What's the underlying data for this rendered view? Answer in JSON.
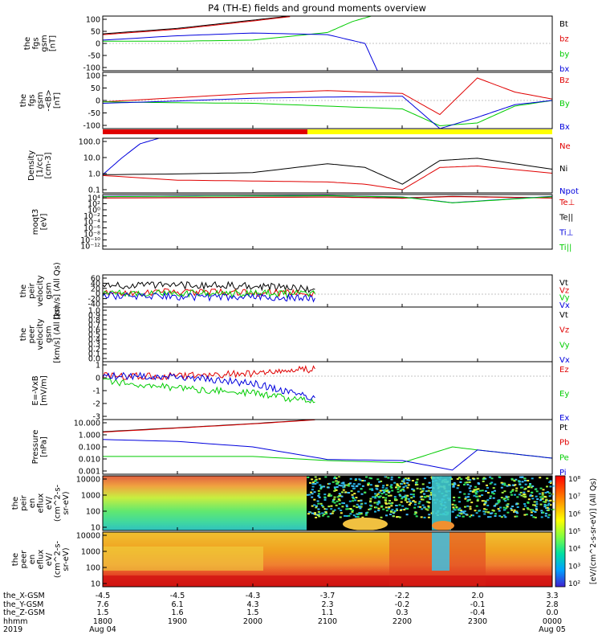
{
  "title": "P4 (TH-E) fields and ground moments overview",
  "colors": {
    "black": "#000000",
    "red": "#e00000",
    "green": "#00cc00",
    "blue": "#0000dd",
    "yellow": "#ffff00"
  },
  "panels": [
    {
      "id": "fgs",
      "ylabel": [
        "the",
        "fgs",
        "gsm",
        "[nT]"
      ],
      "ticks": [
        "100",
        "50",
        "0",
        "-50",
        "-100"
      ],
      "legend": [
        [
          "Bt",
          "black"
        ],
        [
          "bz",
          "red"
        ],
        [
          "by",
          "green"
        ],
        [
          "bx",
          "blue"
        ]
      ]
    },
    {
      "id": "fgs-dsl",
      "ylabel": [
        "the",
        "fgs",
        "gsm",
        "-<B>",
        "[nT]"
      ],
      "ticks": [
        "100",
        "50",
        "0",
        "-50",
        "-100"
      ],
      "legend": [
        [
          "Bz",
          "red"
        ],
        [
          "By",
          "green"
        ],
        [
          "Bx",
          "blue"
        ]
      ]
    },
    {
      "id": "density",
      "ylabel": [
        "Density",
        "[1/cc]",
        "[cm-3]"
      ],
      "ticks": [
        "100.0",
        "10.0",
        "1.0",
        "0.1"
      ],
      "legend": [
        [
          "Ne",
          "red"
        ],
        [
          "Ni",
          "black"
        ],
        [
          "Npot",
          "blue"
        ]
      ]
    },
    {
      "id": "temp",
      "ylabel": [
        "moqt3",
        "[eV]"
      ],
      "ticks": [
        "10⁴",
        "10²",
        "10⁰",
        "10⁻²",
        "10⁻⁴",
        "10⁻⁶",
        "10⁻⁸",
        "10⁻¹⁰",
        "10⁻¹²"
      ],
      "legend": [
        [
          "Te⊥",
          "red"
        ],
        [
          "Te||",
          "black"
        ],
        [
          "Ti⊥",
          "blue"
        ],
        [
          "Ti||",
          "green"
        ]
      ]
    },
    {
      "id": "peir-vel",
      "ylabel": [
        "the",
        "peir",
        "velocity",
        "gsm",
        "[km/s] (All Qs)"
      ],
      "ticks": [
        "60",
        "40",
        "20",
        "0",
        "-20",
        "-40"
      ],
      "legend": [
        [
          "Vt",
          "black"
        ],
        [
          "Vz",
          "red"
        ],
        [
          "Vy",
          "green"
        ],
        [
          "Vx",
          "blue"
        ]
      ]
    },
    {
      "id": "peer-vel",
      "ylabel": [
        "the",
        "peer",
        "velocity",
        "gsm",
        "[km/s] (All Qs)"
      ],
      "ticks": [
        "1.0",
        "0.9",
        "0.8",
        "0.7",
        "0.6",
        "0.5",
        "0.4",
        "0.3",
        "0.2",
        "0.1",
        "0.0"
      ],
      "legend": [
        [
          "Vt",
          "black"
        ],
        [
          "Vz",
          "red"
        ],
        [
          "Vy",
          "green"
        ],
        [
          "Vx",
          "blue"
        ]
      ]
    },
    {
      "id": "exb",
      "ylabel": [
        "E=-VxB",
        "[mV/m]"
      ],
      "ticks": [
        "1",
        "0",
        "-1",
        "-2",
        "-3"
      ],
      "legend": [
        [
          "Ez",
          "red"
        ],
        [
          "Ey",
          "green"
        ],
        [
          "Ex",
          "blue"
        ]
      ]
    },
    {
      "id": "pressure",
      "ylabel": [
        "Pressure",
        "[nPa]"
      ],
      "ticks": [
        "10.000",
        "1.000",
        "0.100",
        "0.010",
        "0.001"
      ],
      "legend": [
        [
          "Pt",
          "black"
        ],
        [
          "Pb",
          "red"
        ],
        [
          "Pe",
          "green"
        ],
        [
          "Pi",
          "blue"
        ]
      ]
    },
    {
      "id": "peir-spec",
      "ylabel": [
        "the",
        "peir",
        "en",
        "eflux",
        "eV/",
        "(cm^2-s-",
        "sr-eV)"
      ],
      "ticks": [
        "10000",
        "1000",
        "100",
        "10"
      ]
    },
    {
      "id": "peer-spec",
      "ylabel": [
        "the",
        "peer",
        "en",
        "eflux",
        "eV/",
        "(cm^2-s-",
        "sr-eV)"
      ],
      "ticks": [
        "10000",
        "1000",
        "100",
        "10"
      ]
    }
  ],
  "colorbar": {
    "label": "[eV/(cm^2-s-sr-eV)] (All Qs)",
    "ticks": [
      "10⁸",
      "10⁷",
      "10⁶",
      "10⁵",
      "10⁴",
      "10³",
      "10²"
    ]
  },
  "xaxis": {
    "row_labels": [
      "the_X-GSM",
      "the_Y-GSM",
      "the_Z-GSM",
      "hhmm",
      "2019"
    ],
    "columns": [
      {
        "x": "-4.5",
        "y": "7.6",
        "z": "1.5",
        "t": "1800",
        "d": "Aug 04"
      },
      {
        "x": "-4.5",
        "y": "6.1",
        "z": "1.6",
        "t": "1900",
        "d": ""
      },
      {
        "x": "-4.3",
        "y": "4.3",
        "z": "1.5",
        "t": "2000",
        "d": ""
      },
      {
        "x": "-3.7",
        "y": "2.3",
        "z": "1.1",
        "t": "2100",
        "d": ""
      },
      {
        "x": "-2.2",
        "y": "-0.2",
        "z": "0.3",
        "t": "2200",
        "d": ""
      },
      {
        "x": "2.0",
        "y": "-0.1",
        "z": "-0.4",
        "t": "2300",
        "d": ""
      },
      {
        "x": "3.3",
        "y": "2.8",
        "z": "0.0",
        "t": "0000",
        "d": "Aug 05"
      }
    ]
  },
  "chart_data": {
    "type": "line",
    "title": "P4 (TH-E) fields and ground moments overview",
    "x_range": [
      "2019-08-04 18:00",
      "2019-08-05 00:00"
    ],
    "x_tick_labels": [
      "1800",
      "1900",
      "2000",
      "2100",
      "2200",
      "2300",
      "0000"
    ],
    "panels": [
      {
        "name": "the fgs gsm [nT]",
        "ylim": [
          -100,
          100
        ],
        "series": [
          {
            "name": "Bt",
            "x": [
              "18:00",
              "19:00",
              "20:00",
              "20:30"
            ],
            "values": [
              35,
              55,
              85,
              100
            ]
          },
          {
            "name": "bz",
            "x": [
              "18:00",
              "19:00",
              "20:00",
              "20:30"
            ],
            "values": [
              32,
              52,
              82,
              98
            ]
          },
          {
            "name": "by",
            "x": [
              "18:00",
              "19:00",
              "20:00",
              "21:00",
              "21:20",
              "21:35"
            ],
            "values": [
              8,
              8,
              12,
              40,
              80,
              100
            ]
          },
          {
            "name": "bx",
            "x": [
              "18:00",
              "19:00",
              "20:00",
              "21:00",
              "21:30",
              "21:40"
            ],
            "values": [
              12,
              28,
              38,
              32,
              0,
              -100
            ]
          }
        ]
      },
      {
        "name": "the fgs gsm -<B> [nT]",
        "ylim": [
          -100,
          100
        ],
        "series": [
          {
            "name": "Bz",
            "x": [
              "18:00",
              "19:00",
              "20:00",
              "21:00",
              "22:00",
              "22:30",
              "23:00",
              "23:30",
              "00:00"
            ],
            "values": [
              -5,
              10,
              25,
              35,
              25,
              -50,
              80,
              30,
              5
            ]
          },
          {
            "name": "By",
            "x": [
              "18:00",
              "19:00",
              "20:00",
              "21:00",
              "22:00",
              "22:30",
              "23:00",
              "23:30",
              "00:00"
            ],
            "values": [
              -5,
              -8,
              -10,
              -20,
              -30,
              -90,
              -80,
              -20,
              0
            ]
          },
          {
            "name": "Bx",
            "x": [
              "18:00",
              "19:00",
              "20:00",
              "21:00",
              "22:00",
              "22:30",
              "23:00",
              "23:30",
              "00:00"
            ],
            "values": [
              -10,
              -2,
              8,
              12,
              15,
              -100,
              -60,
              -15,
              0
            ]
          }
        ]
      },
      {
        "name": "Density [1/cc]",
        "scale": "log",
        "ylim": [
          0.1,
          100
        ],
        "series": [
          {
            "name": "Ni",
            "x": [
              "18:00",
              "19:00",
              "20:00",
              "21:00",
              "21:30",
              "22:00",
              "22:30",
              "23:00",
              "00:00"
            ],
            "values": [
              1,
              1.1,
              1.3,
              4,
              2.5,
              0.3,
              6,
              8,
              2
            ]
          },
          {
            "name": "Ne",
            "x": [
              "18:00",
              "19:00",
              "20:00",
              "21:00",
              "21:30",
              "22:00",
              "22:30",
              "23:00",
              "00:00"
            ],
            "values": [
              0.9,
              0.5,
              0.45,
              0.4,
              0.3,
              0.15,
              2.5,
              3,
              1.2
            ]
          },
          {
            "name": "Npot",
            "x": [
              "18:00",
              "18:15",
              "18:30",
              "18:45"
            ],
            "values": [
              1,
              8,
              50,
              100
            ]
          }
        ]
      },
      {
        "name": "moqt3 [eV]",
        "scale": "log",
        "ylim": [
          1e-12,
          10000.0
        ],
        "series": [
          {
            "name": "Te||",
            "x": [
              "18:00",
              "21:00",
              "22:00",
              "22:40",
              "00:00"
            ],
            "values": [
              1000,
              2000,
              1000,
              3000,
              1000
            ]
          },
          {
            "name": "Te⊥",
            "x": [
              "18:00",
              "21:00",
              "22:00",
              "22:40",
              "00:00"
            ],
            "values": [
              900,
              1800,
              800,
              2500,
              900
            ]
          },
          {
            "name": "Ti⊥",
            "x": [
              "18:00",
              "21:00",
              "22:00",
              "22:40",
              "00:00"
            ],
            "values": [
              3000,
              5000,
              2000,
              40,
              3000
            ]
          },
          {
            "name": "Ti||",
            "x": [
              "18:00",
              "21:00",
              "22:00",
              "22:40",
              "00:00"
            ],
            "values": [
              2500,
              4500,
              1800,
              35,
              2500
            ]
          }
        ]
      },
      {
        "name": "the peir velocity gsm [km/s] (All Qs)",
        "ylim": [
          -40,
          60
        ],
        "series": [
          {
            "name": "Vt",
            "x": [
              "18:00",
              "19:00",
              "20:00",
              "20:50"
            ],
            "values": [
              25,
              28,
              26,
              15
            ]
          },
          {
            "name": "Vz",
            "x": [
              "18:00",
              "19:00",
              "20:00",
              "20:50"
            ],
            "values": [
              5,
              6,
              5,
              4
            ]
          },
          {
            "name": "Vy",
            "x": [
              "18:00",
              "19:00",
              "20:00",
              "20:50"
            ],
            "values": [
              2,
              3,
              2,
              1
            ]
          },
          {
            "name": "Vx",
            "x": [
              "18:00",
              "19:00",
              "20:00",
              "20:50"
            ],
            "values": [
              -5,
              -8,
              -10,
              -12
            ]
          }
        ]
      },
      {
        "name": "the peer velocity gsm [km/s] (All Qs)",
        "ylim": [
          0,
          1
        ],
        "series": []
      },
      {
        "name": "E=-VxB [mV/m]",
        "ylim": [
          -3,
          1
        ],
        "series": [
          {
            "name": "Ez",
            "x": [
              "18:00",
              "19:00",
              "20:00",
              "20:50"
            ],
            "values": [
              0,
              0,
              0.2,
              0.5
            ]
          },
          {
            "name": "Ey",
            "x": [
              "18:00",
              "19:00",
              "20:00",
              "20:50"
            ],
            "values": [
              -0.3,
              -0.8,
              -1.2,
              -1.8
            ]
          },
          {
            "name": "Ex",
            "x": [
              "18:00",
              "19:00",
              "20:00",
              "20:50"
            ],
            "values": [
              0,
              0,
              -0.5,
              -1.5
            ]
          }
        ]
      },
      {
        "name": "Pressure [nPa]",
        "scale": "log",
        "ylim": [
          0.001,
          10
        ],
        "series": [
          {
            "name": "Pt",
            "x": [
              "18:00",
              "19:00",
              "20:00",
              "20:50"
            ],
            "values": [
              1.3,
              2.5,
              5,
              10
            ]
          },
          {
            "name": "Pb",
            "x": [
              "18:00",
              "19:00",
              "20:00",
              "20:50"
            ],
            "values": [
              1.2,
              2.4,
              4.8,
              9.5
            ]
          },
          {
            "name": "Pe",
            "x": [
              "18:00",
              "19:00",
              "20:00",
              "21:00",
              "22:00",
              "22:40",
              "23:00",
              "00:00"
            ],
            "values": [
              0.02,
              0.02,
              0.02,
              0.01,
              0.007,
              0.1,
              0.06,
              0.015
            ]
          },
          {
            "name": "Pi",
            "x": [
              "18:00",
              "19:00",
              "20:00",
              "21:00",
              "22:00",
              "22:40",
              "23:00",
              "00:00"
            ],
            "values": [
              0.35,
              0.25,
              0.1,
              0.012,
              0.01,
              0.002,
              0.06,
              0.015
            ]
          }
        ]
      }
    ],
    "spectrograms": [
      {
        "name": "the peir en eflux",
        "ylim": [
          10,
          20000
        ],
        "scale": "log"
      },
      {
        "name": "the peer en eflux",
        "ylim": [
          10,
          20000
        ],
        "scale": "log"
      }
    ],
    "colorbar_range": [
      100,
      100000000
    ]
  }
}
